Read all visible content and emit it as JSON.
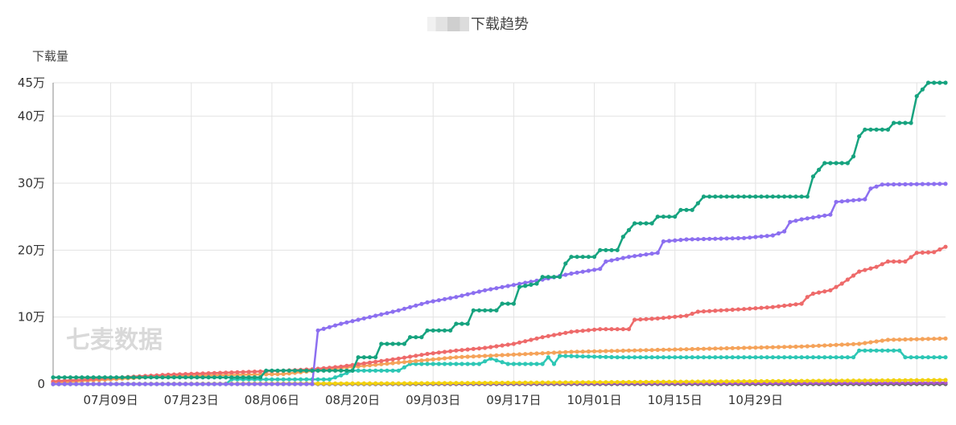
{
  "chart_data": {
    "type": "line",
    "title": "下载趋势",
    "ylabel": "下载量",
    "xlabel": "",
    "watermark": "七麦数据",
    "x_tick_labels": [
      "07月09日",
      "07月23日",
      "08月06日",
      "08月20日",
      "09月03日",
      "09月17日",
      "10月01日",
      "10月15日",
      "10月29日"
    ],
    "y_tick_labels": [
      "0",
      "10万",
      "20万",
      "30万",
      "40万",
      "45万"
    ],
    "y_unit": "万",
    "ylim": [
      0,
      45
    ],
    "x_start": "06月30日",
    "x_end": "11月03日",
    "grid": true,
    "series": [
      {
        "color": "#16a37f",
        "values": [
          [
            0,
            1
          ],
          [
            36,
            1
          ],
          [
            37,
            2
          ],
          [
            52,
            2
          ],
          [
            53,
            4
          ],
          [
            56,
            4
          ],
          [
            57,
            6
          ],
          [
            61,
            6
          ],
          [
            62,
            7
          ],
          [
            64,
            7
          ],
          [
            65,
            8
          ],
          [
            69,
            8
          ],
          [
            70,
            9
          ],
          [
            72,
            9
          ],
          [
            73,
            11
          ],
          [
            77,
            11
          ],
          [
            78,
            12
          ],
          [
            80,
            12
          ],
          [
            81,
            14.5
          ],
          [
            84,
            15
          ],
          [
            85,
            16
          ],
          [
            88,
            16
          ],
          [
            89,
            18
          ],
          [
            90,
            19
          ],
          [
            94,
            19
          ],
          [
            95,
            20
          ],
          [
            98,
            20
          ],
          [
            99,
            22
          ],
          [
            101,
            24
          ],
          [
            104,
            24
          ],
          [
            105,
            25
          ],
          [
            108,
            25
          ],
          [
            109,
            26
          ],
          [
            111,
            26
          ],
          [
            112,
            27
          ],
          [
            113,
            28
          ],
          [
            131,
            28
          ],
          [
            132,
            31
          ],
          [
            134,
            33
          ],
          [
            138,
            33
          ],
          [
            139,
            34
          ],
          [
            140,
            37
          ],
          [
            141,
            38
          ],
          [
            145,
            38
          ],
          [
            146,
            39
          ],
          [
            149,
            39
          ],
          [
            150,
            43
          ],
          [
            151,
            44
          ],
          [
            152,
            45
          ],
          [
            155,
            45
          ]
        ]
      },
      {
        "color": "#8c6ff0",
        "values": [
          [
            0,
            0
          ],
          [
            45,
            0
          ],
          [
            46,
            8
          ],
          [
            50,
            9
          ],
          [
            55,
            10
          ],
          [
            60,
            11
          ],
          [
            65,
            12.2
          ],
          [
            70,
            13
          ],
          [
            75,
            14
          ],
          [
            80,
            14.8
          ],
          [
            85,
            15.6
          ],
          [
            90,
            16.5
          ],
          [
            95,
            17.2
          ],
          [
            96,
            18.3
          ],
          [
            100,
            19
          ],
          [
            105,
            19.6
          ],
          [
            106,
            21.3
          ],
          [
            110,
            21.6
          ],
          [
            120,
            21.8
          ],
          [
            125,
            22.2
          ],
          [
            127,
            22.8
          ],
          [
            128,
            24.2
          ],
          [
            130,
            24.6
          ],
          [
            135,
            25.3
          ],
          [
            136,
            27.2
          ],
          [
            141,
            27.6
          ],
          [
            142,
            29.2
          ],
          [
            144,
            29.8
          ],
          [
            155,
            29.9
          ]
        ]
      },
      {
        "color": "#ee6a6a",
        "values": [
          [
            0,
            0.4
          ],
          [
            20,
            1.4
          ],
          [
            40,
            2
          ],
          [
            45,
            2.2
          ],
          [
            50,
            2.6
          ],
          [
            55,
            3.2
          ],
          [
            60,
            3.8
          ],
          [
            65,
            4.5
          ],
          [
            70,
            5
          ],
          [
            75,
            5.4
          ],
          [
            80,
            6
          ],
          [
            85,
            7
          ],
          [
            90,
            7.8
          ],
          [
            95,
            8.2
          ],
          [
            100,
            8.2
          ],
          [
            101,
            9.6
          ],
          [
            105,
            9.8
          ],
          [
            110,
            10.2
          ],
          [
            112,
            10.8
          ],
          [
            120,
            11.2
          ],
          [
            125,
            11.5
          ],
          [
            130,
            12
          ],
          [
            131,
            13
          ],
          [
            132,
            13.5
          ],
          [
            135,
            14
          ],
          [
            137,
            15
          ],
          [
            140,
            16.8
          ],
          [
            143,
            17.5
          ],
          [
            145,
            18.3
          ],
          [
            148,
            18.3
          ],
          [
            150,
            19.6
          ],
          [
            153,
            19.7
          ],
          [
            155,
            20.5
          ]
        ]
      },
      {
        "color": "#f5a35a",
        "values": [
          [
            0,
            0.2
          ],
          [
            20,
            1.2
          ],
          [
            40,
            1.5
          ],
          [
            50,
            2.4
          ],
          [
            60,
            3.2
          ],
          [
            70,
            4
          ],
          [
            80,
            4.4
          ],
          [
            90,
            4.8
          ],
          [
            100,
            5
          ],
          [
            110,
            5.2
          ],
          [
            120,
            5.4
          ],
          [
            130,
            5.6
          ],
          [
            140,
            6
          ],
          [
            145,
            6.6
          ],
          [
            155,
            6.8
          ]
        ]
      },
      {
        "color": "#2dc7b5",
        "values": [
          [
            0,
            0
          ],
          [
            30,
            0
          ],
          [
            31,
            0.7
          ],
          [
            48,
            0.7
          ],
          [
            50,
            1.3
          ],
          [
            52,
            2
          ],
          [
            60,
            2
          ],
          [
            62,
            3
          ],
          [
            70,
            3
          ],
          [
            74,
            3
          ],
          [
            76,
            3.8
          ],
          [
            79,
            3
          ],
          [
            85,
            3
          ],
          [
            86,
            4
          ],
          [
            87,
            3
          ],
          [
            88,
            4.2
          ],
          [
            98,
            4
          ],
          [
            108,
            4
          ],
          [
            118,
            4
          ],
          [
            128,
            4
          ],
          [
            139,
            4
          ],
          [
            140,
            5
          ],
          [
            147,
            5
          ],
          [
            148,
            4
          ],
          [
            155,
            4
          ]
        ]
      },
      {
        "color": "#f2d20c",
        "values": [
          [
            0,
            0
          ],
          [
            60,
            0.1
          ],
          [
            100,
            0.3
          ],
          [
            155,
            0.6
          ]
        ]
      },
      {
        "color": "#aa55cc",
        "values": [
          [
            0,
            0
          ],
          [
            155,
            0.2
          ]
        ]
      },
      {
        "color": "#666666",
        "values": [
          [
            0,
            0
          ],
          [
            155,
            0
          ]
        ]
      }
    ],
    "x_ticks_index": [
      10,
      24,
      38,
      52,
      66,
      80,
      94,
      108,
      122,
      136,
      150
    ],
    "x_label_index": [
      10,
      24,
      38,
      52,
      66,
      80,
      94,
      108,
      122
    ]
  }
}
